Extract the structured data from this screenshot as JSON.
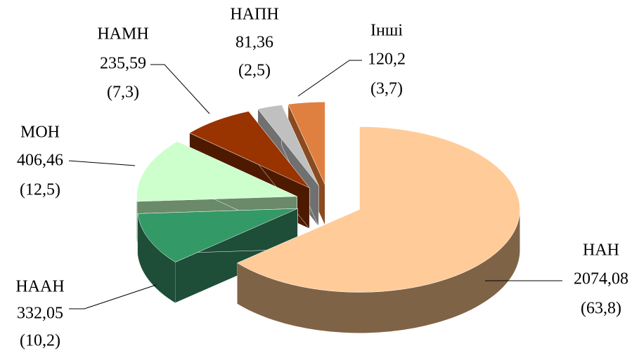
{
  "chart_data": {
    "type": "pie3d",
    "categories": [
      "НАН",
      "НААН",
      "МОН",
      "НАМН",
      "НАПН",
      "Інші"
    ],
    "values": [
      2074.08,
      332.05,
      406.46,
      235.59,
      81.36,
      120.2
    ],
    "value_labels": [
      "2074,08",
      "332,05",
      "406,46",
      "235,59",
      "81,36",
      "120,2"
    ],
    "shares": [
      63.8,
      10.2,
      12.5,
      7.3,
      2.5,
      3.7
    ],
    "share_labels": [
      "(63,8)",
      "(10,2)",
      "(12,5)",
      "(7,3)",
      "(2,5)",
      "(3,7)"
    ],
    "colors": [
      "#FFCC99",
      "#339966",
      "#CCFFCC",
      "#993300",
      "#C0C0C0",
      "#E08040"
    ],
    "side_colors": [
      "#7F6347",
      "#1E4D38",
      "#6A8A6A",
      "#4D1A00",
      "#707070",
      "#8A4A20"
    ]
  }
}
